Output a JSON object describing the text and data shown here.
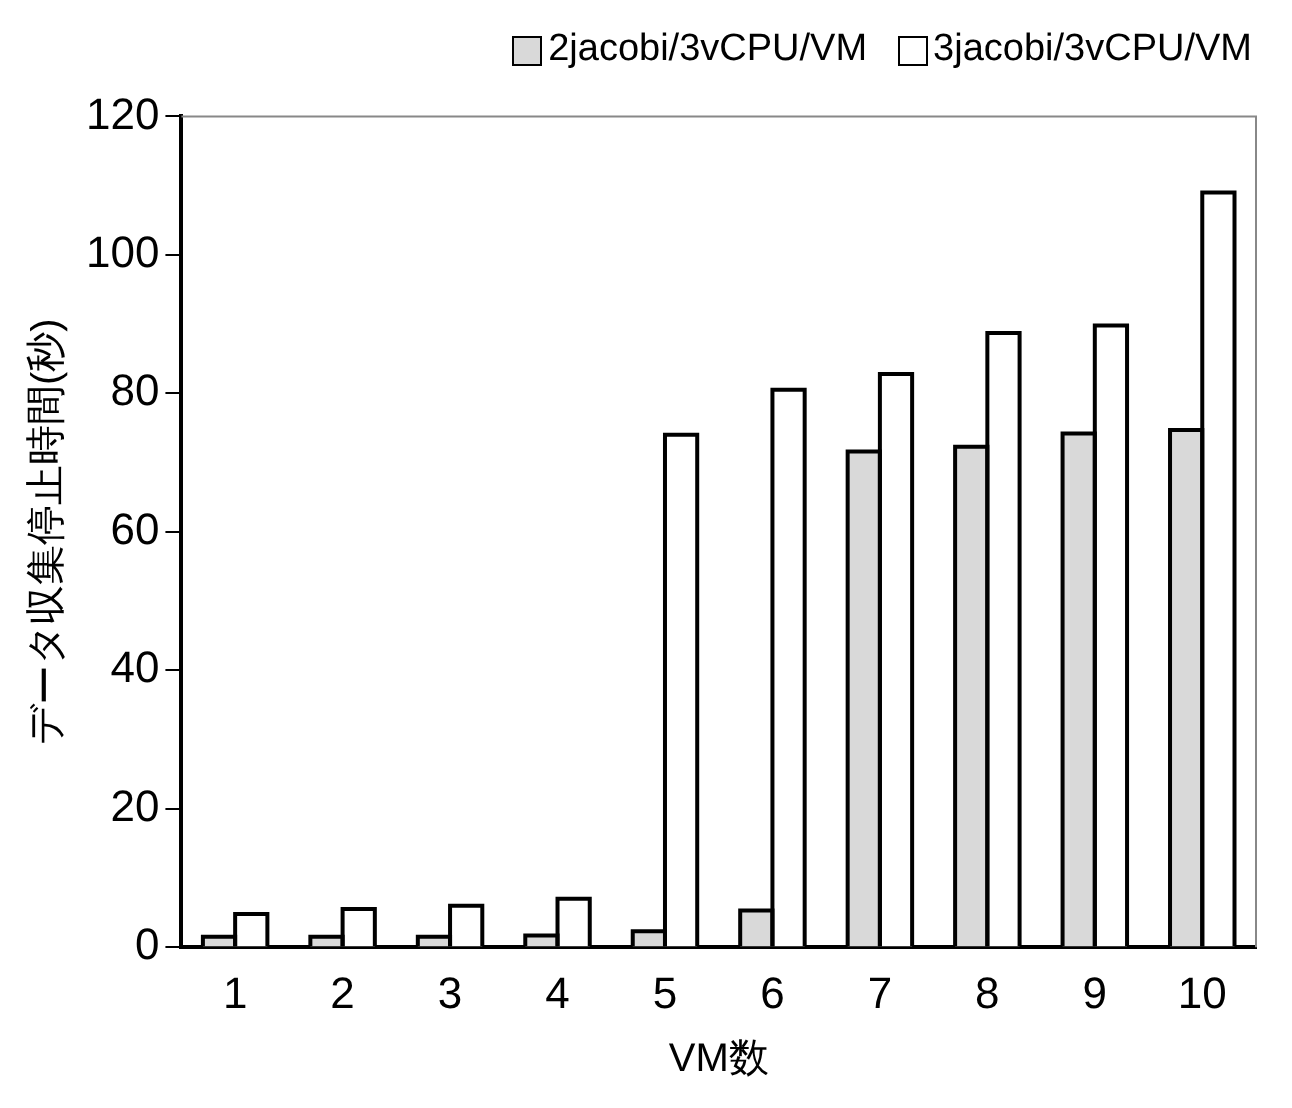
{
  "chart_data": {
    "type": "bar",
    "xlabel": "VM数",
    "ylabel": "データ収集停止時間(秒)",
    "categories": [
      "1",
      "2",
      "3",
      "4",
      "5",
      "6",
      "7",
      "8",
      "9",
      "10"
    ],
    "series": [
      {
        "name": "2jacobi/3vCPU/VM",
        "color": "#d9d9d9",
        "values": [
          1.5,
          1.5,
          1.5,
          1.7,
          2.3,
          5.3,
          71.6,
          72.3,
          74.2,
          74.7
        ]
      },
      {
        "name": "3jacobi/3vCPU/VM",
        "color": "#ffffff",
        "values": [
          4.8,
          5.5,
          6,
          7,
          74,
          80.5,
          82.8,
          88.7,
          89.8,
          109
        ]
      }
    ],
    "ylim": [
      0,
      120
    ],
    "yticks": [
      0,
      20,
      40,
      60,
      80,
      100,
      120
    ],
    "grid": false,
    "legend": "top"
  }
}
